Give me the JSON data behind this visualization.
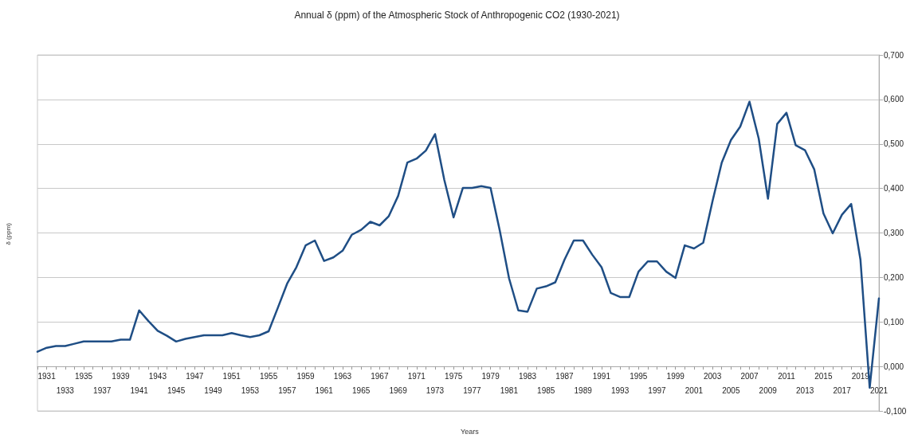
{
  "chart_data": {
    "type": "line",
    "title": "Annual δ (ppm) of the Atmospheric Stock of Anthropogenic CO2 (1930-2021)",
    "xlabel": "Years",
    "ylabel": "δ (ppm)",
    "categories": [
      null,
      "1931",
      null,
      "1933",
      null,
      "1935",
      null,
      "1937",
      null,
      "1939",
      null,
      "1941",
      null,
      "1943",
      null,
      "1945",
      null,
      "1947",
      null,
      "1949",
      null,
      "1951",
      null,
      "1953",
      null,
      "1955",
      null,
      "1957",
      null,
      "1959",
      null,
      "1961",
      null,
      "1963",
      null,
      "1965",
      null,
      "1967",
      null,
      "1969",
      null,
      "1971",
      null,
      "1973",
      null,
      "1975",
      null,
      "1977",
      null,
      "1979",
      null,
      "1981",
      null,
      "1983",
      null,
      "1985",
      null,
      "1987",
      null,
      "1989",
      null,
      "1991",
      null,
      "1993",
      null,
      "1995",
      null,
      "1997",
      null,
      "1999",
      null,
      "2001",
      null,
      "2003",
      null,
      "2005",
      null,
      "2007",
      null,
      "2009",
      null,
      "2011",
      null,
      "2013",
      null,
      "2015",
      null,
      "2017",
      null,
      "2019",
      null,
      "2021"
    ],
    "series": [
      {
        "color": "#1f4e85",
        "values": [
          0.033,
          0.042,
          0.046,
          0.046,
          0.051,
          0.056,
          0.056,
          0.056,
          0.056,
          0.06,
          0.06,
          0.126,
          0.102,
          0.08,
          0.069,
          0.056,
          0.062,
          0.066,
          0.07,
          0.07,
          0.07,
          0.075,
          0.07,
          0.066,
          0.07,
          0.079,
          0.132,
          0.186,
          0.223,
          0.272,
          0.283,
          0.237,
          0.245,
          0.26,
          0.296,
          0.307,
          0.325,
          0.317,
          0.338,
          0.383,
          0.458,
          0.467,
          0.485,
          0.522,
          0.419,
          0.335,
          0.401,
          0.401,
          0.405,
          0.401,
          0.305,
          0.198,
          0.126,
          0.123,
          0.175,
          0.18,
          0.189,
          0.24,
          0.283,
          0.283,
          0.251,
          0.223,
          0.165,
          0.156,
          0.156,
          0.213,
          0.236,
          0.236,
          0.213,
          0.199,
          0.272,
          0.265,
          0.278,
          0.371,
          0.458,
          0.509,
          0.539,
          0.595,
          0.512,
          0.377,
          0.545,
          0.57,
          0.497,
          0.486,
          0.443,
          0.344,
          0.299,
          0.341,
          0.365,
          0.24,
          -0.048,
          0.153
        ]
      }
    ],
    "ylim": [
      -0.1,
      0.7
    ],
    "yticks": [
      {
        "value": -0.1,
        "label": "-0,100"
      },
      {
        "value": 0,
        "label": "0,000"
      },
      {
        "value": 0.1,
        "label": "0,100"
      },
      {
        "value": 0.2,
        "label": "0,200"
      },
      {
        "value": 0.3,
        "label": "0,300"
      },
      {
        "value": 0.4,
        "label": "0,400"
      },
      {
        "value": 0.5,
        "label": "0,500"
      },
      {
        "value": 0.6,
        "label": "0,600"
      },
      {
        "value": 0.7,
        "label": "0,700"
      }
    ],
    "grid": "y",
    "marker": "none",
    "line_style": "solid"
  }
}
